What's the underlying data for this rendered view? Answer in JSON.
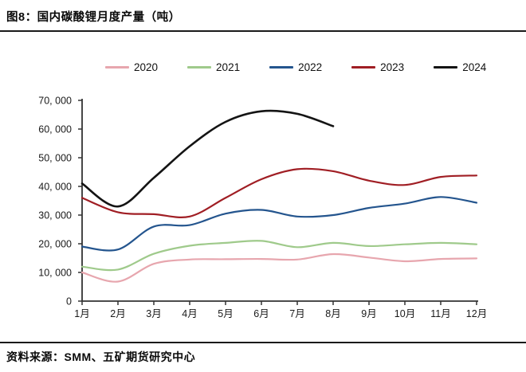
{
  "header": {
    "title": "图8：国内碳酸锂月度产量（吨）"
  },
  "source": {
    "text": "资料来源：SMM、五矿期货研究中心"
  },
  "chart_data": {
    "type": "line",
    "title": "国内碳酸锂月度产量（吨）",
    "unit": "吨",
    "grid": false,
    "legend_position": "top",
    "categories": [
      "1月",
      "2月",
      "3月",
      "4月",
      "5月",
      "6月",
      "7月",
      "8月",
      "9月",
      "10月",
      "11月",
      "12月"
    ],
    "ylim": [
      0,
      70000
    ],
    "y_ticks": [
      0,
      10000,
      20000,
      30000,
      40000,
      50000,
      60000,
      70000
    ],
    "y_tick_labels": [
      "0",
      "10, 000",
      "20, 000",
      "30, 000",
      "40, 000",
      "50, 000",
      "60, 000",
      "70, 000"
    ],
    "series": [
      {
        "name": "2020",
        "color": "#e7a6ae",
        "values": [
          10000,
          6800,
          13000,
          14500,
          14600,
          14700,
          14500,
          16400,
          15200,
          13900,
          14700,
          14900
        ]
      },
      {
        "name": "2021",
        "color": "#9fca8b",
        "values": [
          12000,
          11000,
          16500,
          19300,
          20300,
          21000,
          18800,
          20300,
          19200,
          19800,
          20300,
          19800
        ]
      },
      {
        "name": "2022",
        "color": "#24558e",
        "values": [
          19000,
          18000,
          26000,
          26500,
          30500,
          31800,
          29500,
          30000,
          32500,
          34000,
          36300,
          34300
        ]
      },
      {
        "name": "2023",
        "color": "#a01e24",
        "values": [
          36000,
          31000,
          30300,
          29500,
          36000,
          42500,
          46000,
          45300,
          42000,
          40500,
          43300,
          43800
        ]
      },
      {
        "name": "2024",
        "color": "#141414",
        "values": [
          41000,
          33000,
          43000,
          54000,
          62500,
          66200,
          65300,
          61000
        ]
      }
    ]
  }
}
